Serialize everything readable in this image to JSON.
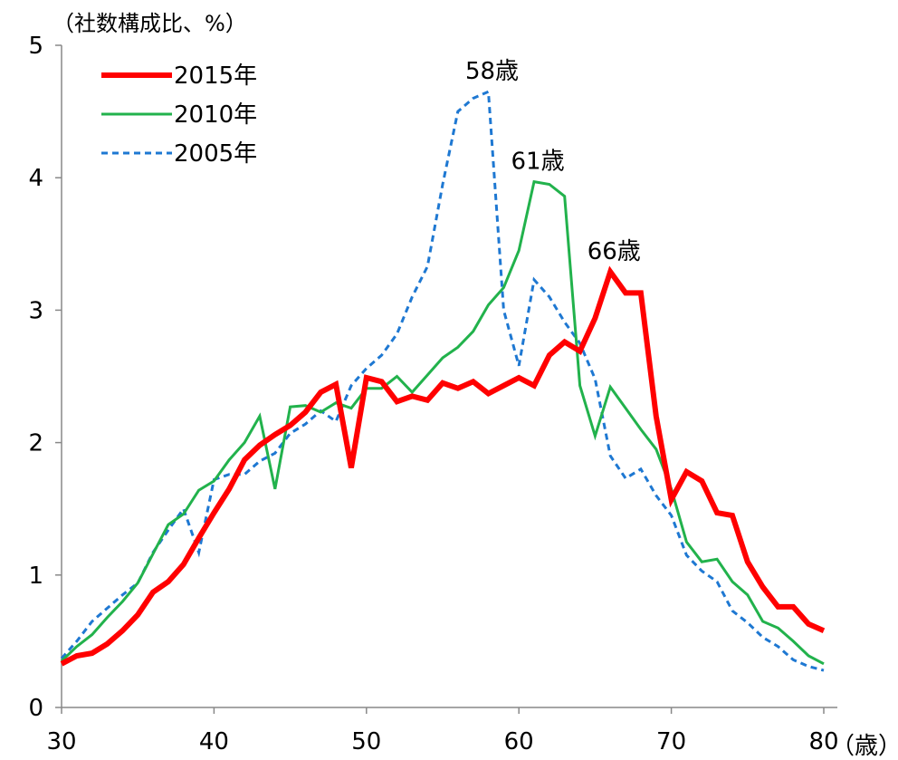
{
  "chart_data": {
    "type": "line",
    "title": "",
    "ylabel": "（社数構成比、%）",
    "xlabel": "（歳）",
    "xlim": [
      30,
      80
    ],
    "ylim": [
      0,
      5
    ],
    "xticks": [
      30,
      40,
      50,
      60,
      70,
      80
    ],
    "yticks": [
      0,
      1,
      2,
      3,
      4,
      5
    ],
    "grid": false,
    "legend_position": "top-left",
    "series": [
      {
        "name": "2015年",
        "color": "#ff0000",
        "style": "solid-thick",
        "x": [
          30,
          31,
          32,
          33,
          34,
          35,
          36,
          37,
          38,
          39,
          40,
          41,
          42,
          43,
          44,
          45,
          46,
          47,
          48,
          49,
          50,
          51,
          52,
          53,
          54,
          55,
          56,
          57,
          58,
          59,
          60,
          61,
          62,
          63,
          64,
          65,
          66,
          67,
          68,
          69,
          70,
          71,
          72,
          73,
          74,
          75,
          76,
          77,
          78,
          79,
          80
        ],
        "values": [
          0.33,
          0.39,
          0.41,
          0.48,
          0.58,
          0.7,
          0.87,
          0.95,
          1.08,
          1.28,
          1.47,
          1.65,
          1.87,
          1.98,
          2.06,
          2.13,
          2.23,
          2.38,
          2.44,
          1.81,
          2.49,
          2.46,
          2.31,
          2.35,
          2.32,
          2.45,
          2.41,
          2.46,
          2.37,
          2.43,
          2.49,
          2.43,
          2.66,
          2.76,
          2.69,
          2.94,
          3.29,
          3.13,
          3.13,
          2.2,
          1.57,
          1.78,
          1.71,
          1.47,
          1.45,
          1.1,
          0.91,
          0.76,
          0.76,
          0.63,
          0.58
        ]
      },
      {
        "name": "2010年",
        "color": "#22b24c",
        "style": "solid",
        "x": [
          30,
          31,
          32,
          33,
          34,
          35,
          36,
          37,
          38,
          39,
          40,
          41,
          42,
          43,
          44,
          45,
          46,
          47,
          48,
          49,
          50,
          51,
          52,
          53,
          54,
          55,
          56,
          57,
          58,
          59,
          60,
          61,
          62,
          63,
          64,
          65,
          66,
          67,
          68,
          69,
          70,
          71,
          72,
          73,
          74,
          75,
          76,
          77,
          78,
          79,
          80
        ],
        "values": [
          0.35,
          0.46,
          0.55,
          0.68,
          0.8,
          0.94,
          1.16,
          1.38,
          1.46,
          1.64,
          1.71,
          1.87,
          2.0,
          2.2,
          1.65,
          2.27,
          2.28,
          2.23,
          2.3,
          2.26,
          2.41,
          2.41,
          2.5,
          2.38,
          2.51,
          2.64,
          2.72,
          2.84,
          3.04,
          3.17,
          3.45,
          3.97,
          3.95,
          3.86,
          2.43,
          2.05,
          2.42,
          2.26,
          2.1,
          1.95,
          1.65,
          1.25,
          1.1,
          1.12,
          0.95,
          0.85,
          0.65,
          0.6,
          0.5,
          0.39,
          0.33
        ]
      },
      {
        "name": "2005年",
        "color": "#1e78d2",
        "style": "dashed",
        "x": [
          30,
          31,
          32,
          33,
          34,
          35,
          36,
          37,
          38,
          39,
          40,
          41,
          42,
          43,
          44,
          45,
          46,
          47,
          48,
          49,
          50,
          51,
          52,
          53,
          54,
          55,
          56,
          57,
          58,
          59,
          60,
          61,
          62,
          63,
          64,
          65,
          66,
          67,
          68,
          69,
          70,
          71,
          72,
          73,
          74,
          75,
          76,
          77,
          78,
          79,
          80
        ],
        "values": [
          0.37,
          0.5,
          0.65,
          0.75,
          0.85,
          0.94,
          1.17,
          1.34,
          1.5,
          1.17,
          1.72,
          1.76,
          1.76,
          1.86,
          1.92,
          2.07,
          2.14,
          2.24,
          2.16,
          2.43,
          2.56,
          2.66,
          2.82,
          3.1,
          3.33,
          3.95,
          4.5,
          4.6,
          4.65,
          3.0,
          2.58,
          3.23,
          3.1,
          2.91,
          2.75,
          2.48,
          1.9,
          1.73,
          1.8,
          1.6,
          1.45,
          1.15,
          1.03,
          0.95,
          0.73,
          0.64,
          0.53,
          0.46,
          0.36,
          0.31,
          0.28
        ]
      }
    ],
    "annotations": [
      {
        "text": "58歳",
        "x": 58,
        "y": 4.65
      },
      {
        "text": "61歳",
        "x": 61,
        "y": 3.97
      },
      {
        "text": "66歳",
        "x": 66,
        "y": 3.29
      }
    ]
  }
}
